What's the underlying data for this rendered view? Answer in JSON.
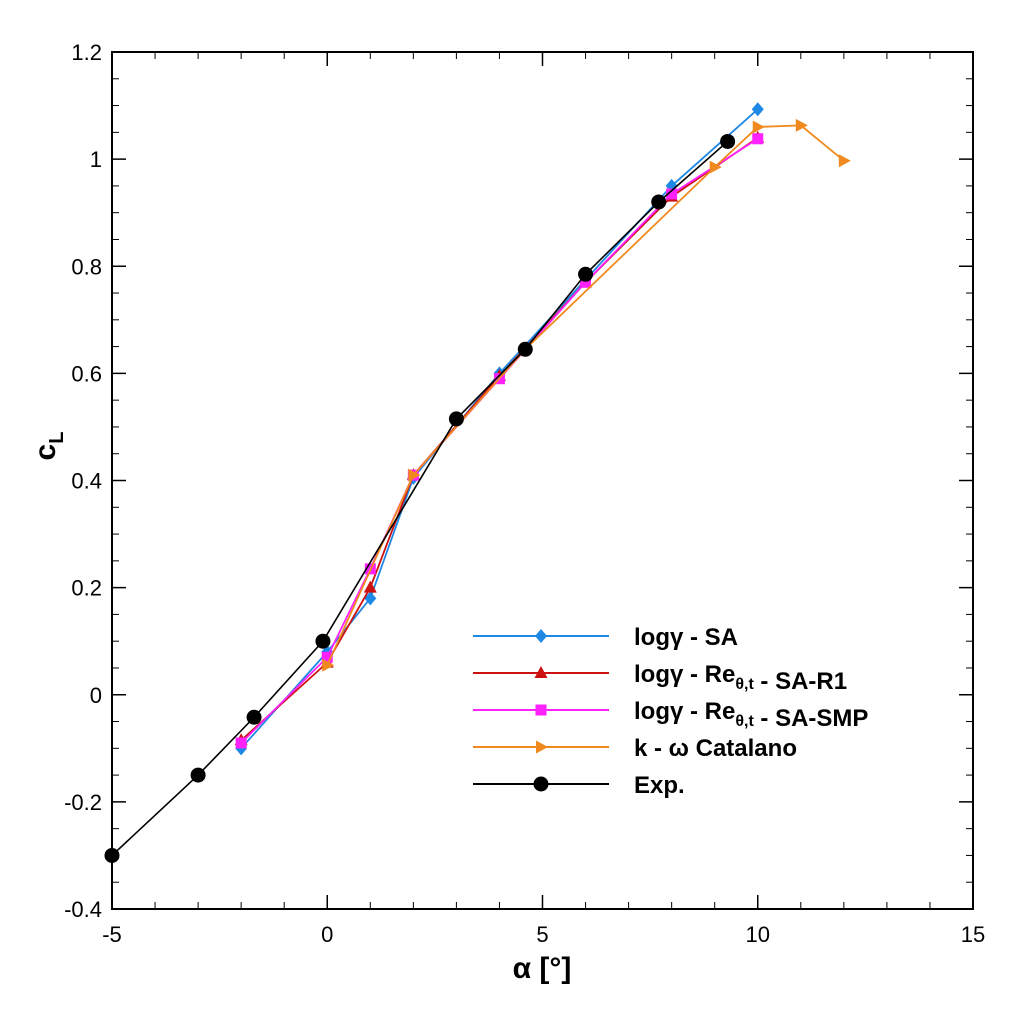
{
  "chart_data": {
    "type": "line",
    "title": "",
    "xlabel": "α [°]",
    "ylabel": "c",
    "ylabel_sub": "L",
    "xlim": [
      -5,
      15
    ],
    "ylim": [
      -0.4,
      1.2
    ],
    "x_ticks": [
      -5,
      0,
      5,
      10,
      15
    ],
    "x_tick_labels": [
      "-5",
      "0",
      "5",
      "10",
      "15"
    ],
    "y_ticks": [
      -0.4,
      -0.2,
      0,
      0.2,
      0.4,
      0.6,
      0.8,
      1,
      1.2
    ],
    "y_tick_labels": [
      "-0.4",
      "-0.2",
      "0",
      "0.2",
      "0.4",
      "0.6",
      "0.8",
      "1",
      "1.2"
    ],
    "grid": false,
    "legend_position": "bottom-right",
    "series": [
      {
        "id": "log-gamma-sa",
        "name": "logγ - SA",
        "name_parts": [
          {
            "t": "logγ - SA"
          }
        ],
        "color": "#1e88e5",
        "marker": "diamond",
        "x": [
          -2,
          0,
          1,
          2,
          4,
          8,
          10
        ],
        "y": [
          -0.1,
          0.08,
          0.18,
          0.405,
          0.6,
          0.95,
          1.093
        ]
      },
      {
        "id": "log-gamma-re-sa-r1",
        "name": "logγ - Reθ,t - SA-R1",
        "name_parts": [
          {
            "t": "logγ - Re"
          },
          {
            "sub": "θ,t"
          },
          {
            "t": " - SA-R1"
          }
        ],
        "color": "#cc1111",
        "marker": "triangle",
        "x": [
          -2,
          0,
          1,
          2,
          4,
          6,
          8,
          10
        ],
        "y": [
          -0.085,
          0.06,
          0.2,
          0.41,
          0.595,
          0.77,
          0.93,
          1.04
        ]
      },
      {
        "id": "log-gamma-re-sa-smp",
        "name": "logγ - Reθ,t - SA-SMP",
        "name_parts": [
          {
            "t": "logγ - Re"
          },
          {
            "sub": "θ,t"
          },
          {
            "t": " - SA-SMP"
          }
        ],
        "color": "#ff22ff",
        "marker": "square",
        "x": [
          -2,
          0,
          1,
          2,
          4,
          6,
          8,
          10
        ],
        "y": [
          -0.09,
          0.07,
          0.235,
          0.41,
          0.59,
          0.77,
          0.935,
          1.038
        ]
      },
      {
        "id": "k-omega-catalano",
        "name": "k - ω Catalano",
        "name_parts": [
          {
            "t": "k - ω Catalano"
          }
        ],
        "color": "#f08a1e",
        "marker": "triangle-right",
        "x": [
          0,
          2,
          4.6,
          9,
          10,
          11,
          12
        ],
        "y": [
          0.055,
          0.41,
          0.645,
          0.985,
          1.06,
          1.063,
          0.997
        ]
      },
      {
        "id": "exp",
        "name": "Exp.",
        "name_parts": [
          {
            "t": "Exp."
          }
        ],
        "color": "#000000",
        "marker": "circle",
        "x": [
          -5,
          -3,
          -1.7,
          -0.1,
          3,
          4.6,
          6,
          7.7,
          9.3
        ],
        "y": [
          -0.3,
          -0.15,
          -0.042,
          0.1,
          0.515,
          0.645,
          0.785,
          0.92,
          1.033
        ]
      }
    ]
  }
}
